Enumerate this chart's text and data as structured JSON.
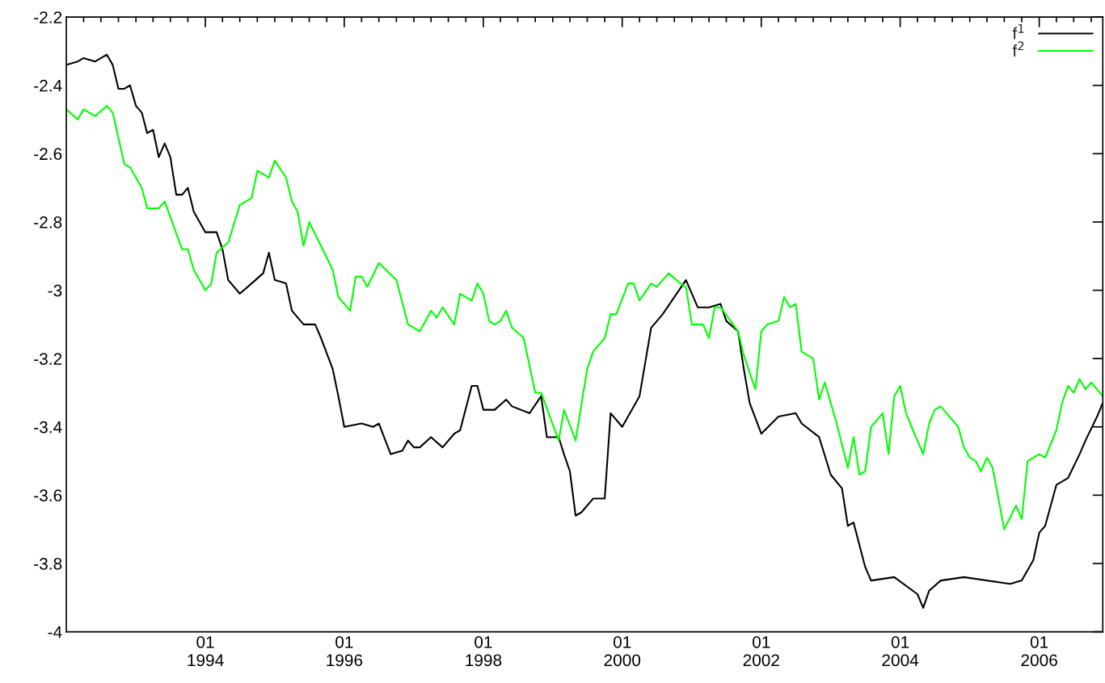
{
  "chart_data": {
    "type": "line",
    "x": [
      "1992-01",
      "1992-03",
      "1992-04",
      "1992-06",
      "1992-08",
      "1992-09",
      "1992-10",
      "1992-11",
      "1992-12",
      "1993-01",
      "1993-02",
      "1993-03",
      "1993-04",
      "1993-05",
      "1993-06",
      "1993-07",
      "1993-08",
      "1993-09",
      "1993-10",
      "1993-11",
      "1994-01",
      "1994-03",
      "1994-04",
      "1994-05",
      "1994-07",
      "1994-09",
      "1994-11",
      "1994-12",
      "1995-01",
      "1995-03",
      "1995-04",
      "1995-06",
      "1995-08",
      "1995-09",
      "1995-11",
      "1995-12",
      "1996-01",
      "1996-04",
      "1996-06",
      "1996-07",
      "1996-09",
      "1996-11",
      "1996-12",
      "1997-01",
      "1997-02",
      "1997-04",
      "1997-06",
      "1997-08",
      "1997-09",
      "1997-11",
      "1997-12",
      "1998-01",
      "1998-03",
      "1998-05",
      "1998-06",
      "1998-09",
      "1998-11",
      "1998-12",
      "1999-02",
      "1999-03",
      "1999-04",
      "1999-05",
      "1999-06",
      "1999-08",
      "1999-10",
      "1999-11",
      "2000-01",
      "2000-04",
      "2000-06",
      "2000-08",
      "2000-12",
      "2001-02",
      "2001-04",
      "2001-06",
      "2001-07",
      "2001-09",
      "2001-10",
      "2001-11",
      "2002-01",
      "2002-04",
      "2002-07",
      "2002-08",
      "2002-11",
      "2003-01",
      "2003-03",
      "2003-04",
      "2003-05",
      "2003-07",
      "2003-08",
      "2003-12",
      "2004-04",
      "2004-05",
      "2004-06",
      "2004-08",
      "2004-12",
      "2005-08",
      "2005-10",
      "2005-12",
      "2006-01",
      "2006-02",
      "2006-04",
      "2006-06",
      "2006-08",
      "2006-09",
      "2006-11",
      "2006-12"
    ],
    "series": [
      {
        "name": "f$^{1}$",
        "color": "#000000",
        "values": [
          -2.34,
          -2.33,
          -2.32,
          -2.33,
          -2.31,
          -2.34,
          -2.41,
          -2.41,
          -2.4,
          -2.46,
          -2.48,
          -2.54,
          -2.53,
          -2.61,
          -2.57,
          -2.61,
          -2.72,
          -2.72,
          -2.7,
          -2.77,
          -2.83,
          -2.83,
          -2.88,
          -2.97,
          -3.01,
          -2.98,
          -2.95,
          -2.89,
          -2.97,
          -2.98,
          -3.06,
          -3.1,
          -3.1,
          -3.14,
          -3.23,
          -3.31,
          -3.4,
          -3.39,
          -3.4,
          -3.39,
          -3.48,
          -3.47,
          -3.44,
          -3.46,
          -3.46,
          -3.43,
          -3.46,
          -3.42,
          -3.41,
          -3.28,
          -3.28,
          -3.35,
          -3.35,
          -3.32,
          -3.34,
          -3.36,
          -3.31,
          -3.43,
          -3.43,
          -3.48,
          -3.53,
          -3.66,
          -3.65,
          -3.61,
          -3.61,
          -3.36,
          -3.4,
          -3.31,
          -3.11,
          -3.07,
          -2.97,
          -3.05,
          -3.05,
          -3.04,
          -3.09,
          -3.12,
          -3.23,
          -3.33,
          -3.42,
          -3.37,
          -3.36,
          -3.39,
          -3.43,
          -3.54,
          -3.58,
          -3.69,
          -3.68,
          -3.81,
          -3.85,
          -3.84,
          -3.89,
          -3.93,
          -3.88,
          -3.85,
          -3.84,
          -3.86,
          -3.85,
          -3.79,
          -3.71,
          -3.69,
          -3.57,
          -3.55,
          -3.48,
          -3.44,
          -3.37,
          -3.33
        ]
      },
      {
        "name": "f$^{2}$",
        "color": "#00ff00",
        "x": [
          "1992-01",
          "1992-03",
          "1992-04",
          "1992-06",
          "1992-08",
          "1992-09",
          "1992-11",
          "1992-12",
          "1993-02",
          "1993-03",
          "1993-05",
          "1993-06",
          "1993-09",
          "1993-10",
          "1993-11",
          "1994-01",
          "1994-02",
          "1994-03",
          "1994-05",
          "1994-07",
          "1994-09",
          "1994-10",
          "1994-12",
          "1995-01",
          "1995-03",
          "1995-04",
          "1995-05",
          "1995-06",
          "1995-07",
          "1995-11",
          "1995-12",
          "1996-02",
          "1996-03",
          "1996-04",
          "1996-05",
          "1996-07",
          "1996-10",
          "1996-12",
          "1997-02",
          "1997-04",
          "1997-05",
          "1997-06",
          "1997-08",
          "1997-09",
          "1997-11",
          "1997-12",
          "1998-01",
          "1998-02",
          "1998-03",
          "1998-04",
          "1998-05",
          "1998-06",
          "1998-08",
          "1998-10",
          "1998-11",
          "1999-02",
          "1999-03",
          "1999-05",
          "1999-07",
          "1999-08",
          "1999-10",
          "1999-11",
          "1999-12",
          "2000-02",
          "2000-03",
          "2000-04",
          "2000-06",
          "2000-07",
          "2000-09",
          "2000-11",
          "2000-12",
          "2001-01",
          "2001-03",
          "2001-04",
          "2001-05",
          "2001-06",
          "2001-09",
          "2001-10",
          "2001-12",
          "2002-01",
          "2002-02",
          "2002-04",
          "2002-05",
          "2002-06",
          "2002-07",
          "2002-08",
          "2002-10",
          "2002-11",
          "2002-12",
          "2003-02",
          "2003-04",
          "2003-05",
          "2003-06",
          "2003-07",
          "2003-08",
          "2003-10",
          "2003-11",
          "2003-12",
          "2004-01",
          "2004-02",
          "2004-03",
          "2004-05",
          "2004-06",
          "2004-07",
          "2004-08",
          "2004-09",
          "2004-11",
          "2004-12",
          "2005-01",
          "2005-02",
          "2005-03",
          "2005-04",
          "2005-05",
          "2005-07",
          "2005-09",
          "2005-10",
          "2005-11",
          "2006-01",
          "2006-02",
          "2006-04",
          "2006-05",
          "2006-06",
          "2006-07",
          "2006-08",
          "2006-09",
          "2006-10",
          "2006-12"
        ],
        "values": [
          -2.47,
          -2.5,
          -2.47,
          -2.49,
          -2.46,
          -2.48,
          -2.63,
          -2.64,
          -2.7,
          -2.76,
          -2.76,
          -2.74,
          -2.88,
          -2.88,
          -2.94,
          -3.0,
          -2.98,
          -2.89,
          -2.86,
          -2.75,
          -2.73,
          -2.65,
          -2.67,
          -2.62,
          -2.67,
          -2.74,
          -2.77,
          -2.87,
          -2.8,
          -2.94,
          -3.02,
          -3.06,
          -2.96,
          -2.96,
          -2.99,
          -2.92,
          -2.97,
          -3.1,
          -3.12,
          -3.06,
          -3.08,
          -3.05,
          -3.1,
          -3.01,
          -3.03,
          -2.98,
          -3.01,
          -3.09,
          -3.1,
          -3.09,
          -3.06,
          -3.11,
          -3.14,
          -3.3,
          -3.3,
          -3.44,
          -3.35,
          -3.44,
          -3.23,
          -3.18,
          -3.14,
          -3.07,
          -3.07,
          -2.98,
          -2.98,
          -3.03,
          -2.98,
          -2.99,
          -2.95,
          -2.98,
          -2.99,
          -3.1,
          -3.1,
          -3.14,
          -3.05,
          -3.05,
          -3.12,
          -3.19,
          -3.29,
          -3.12,
          -3.1,
          -3.09,
          -3.02,
          -3.05,
          -3.04,
          -3.18,
          -3.2,
          -3.32,
          -3.27,
          -3.39,
          -3.52,
          -3.43,
          -3.54,
          -3.53,
          -3.4,
          -3.36,
          -3.48,
          -3.31,
          -3.28,
          -3.36,
          -3.4,
          -3.48,
          -3.39,
          -3.35,
          -3.34,
          -3.36,
          -3.4,
          -3.46,
          -3.49,
          -3.5,
          -3.53,
          -3.49,
          -3.52,
          -3.7,
          -3.63,
          -3.67,
          -3.5,
          -3.48,
          -3.49,
          -3.41,
          -3.33,
          -3.28,
          -3.3,
          -3.26,
          -3.29,
          -3.27,
          -3.31
        ]
      }
    ],
    "xlim": [
      "1992-01",
      "2006-12"
    ],
    "xticks": [
      {
        "value": "1992-04",
        "label": null
      },
      {
        "value": "1992-07",
        "label": null
      },
      {
        "value": "1992-10",
        "label": null
      },
      {
        "value": "1993-01",
        "label": null
      },
      {
        "value": "1993-04",
        "label": null
      },
      {
        "value": "1993-07",
        "label": null
      },
      {
        "value": "1993-10",
        "label": null
      },
      {
        "value": "1994-01",
        "label": "01\n1994"
      },
      {
        "value": "1994-04",
        "label": null
      },
      {
        "value": "1994-07",
        "label": null
      },
      {
        "value": "1994-10",
        "label": null
      },
      {
        "value": "1995-01",
        "label": null
      },
      {
        "value": "1995-04",
        "label": null
      },
      {
        "value": "1995-07",
        "label": null
      },
      {
        "value": "1995-10",
        "label": null
      },
      {
        "value": "1996-01",
        "label": "01\n1996"
      },
      {
        "value": "1996-04",
        "label": null
      },
      {
        "value": "1996-07",
        "label": null
      },
      {
        "value": "1996-10",
        "label": null
      },
      {
        "value": "1997-01",
        "label": null
      },
      {
        "value": "1997-04",
        "label": null
      },
      {
        "value": "1997-07",
        "label": null
      },
      {
        "value": "1997-10",
        "label": null
      },
      {
        "value": "1998-01",
        "label": "01\n1998"
      },
      {
        "value": "1998-04",
        "label": null
      },
      {
        "value": "1998-07",
        "label": null
      },
      {
        "value": "1998-10",
        "label": null
      },
      {
        "value": "1999-01",
        "label": null
      },
      {
        "value": "1999-04",
        "label": null
      },
      {
        "value": "1999-07",
        "label": null
      },
      {
        "value": "1999-10",
        "label": null
      },
      {
        "value": "2000-01",
        "label": "01\n2000"
      },
      {
        "value": "2000-04",
        "label": null
      },
      {
        "value": "2000-07",
        "label": null
      },
      {
        "value": "2000-10",
        "label": null
      },
      {
        "value": "2001-01",
        "label": null
      },
      {
        "value": "2001-04",
        "label": null
      },
      {
        "value": "2001-07",
        "label": null
      },
      {
        "value": "2001-10",
        "label": null
      },
      {
        "value": "2002-01",
        "label": "01\n2002"
      },
      {
        "value": "2002-04",
        "label": null
      },
      {
        "value": "2002-07",
        "label": null
      },
      {
        "value": "2002-10",
        "label": null
      },
      {
        "value": "2003-01",
        "label": null
      },
      {
        "value": "2003-04",
        "label": null
      },
      {
        "value": "2003-07",
        "label": null
      },
      {
        "value": "2003-10",
        "label": null
      },
      {
        "value": "2004-01",
        "label": "01\n2004"
      },
      {
        "value": "2004-04",
        "label": null
      },
      {
        "value": "2004-07",
        "label": null
      },
      {
        "value": "2004-10",
        "label": null
      },
      {
        "value": "2005-01",
        "label": null
      },
      {
        "value": "2005-04",
        "label": null
      },
      {
        "value": "2005-07",
        "label": null
      },
      {
        "value": "2005-10",
        "label": null
      },
      {
        "value": "2006-01",
        "label": "01\n2006"
      },
      {
        "value": "2006-04",
        "label": null
      },
      {
        "value": "2006-07",
        "label": null
      },
      {
        "value": "2006-10",
        "label": null
      }
    ],
    "ylim": [
      -4,
      -2.2
    ],
    "yticks": [
      -4,
      -3.8,
      -3.6,
      -3.4,
      -3.2,
      -3,
      -2.8,
      -2.6,
      -2.4,
      -2.2
    ],
    "grid": false,
    "legend": "top right",
    "line_style": "solid"
  }
}
